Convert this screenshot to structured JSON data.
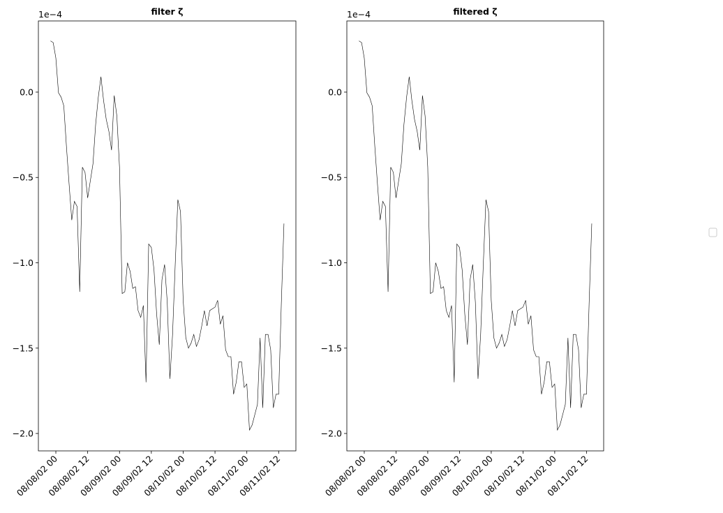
{
  "chart_data": [
    {
      "type": "line",
      "title": "filter ζ",
      "offset_text": "1e−4",
      "color": "#000000",
      "x": [
        "08/07/02 22",
        "08/07/02 23",
        "08/08/02 00",
        "08/08/02 01",
        "08/08/02 02",
        "08/08/02 03",
        "08/08/02 04",
        "08/08/02 05",
        "08/08/02 06",
        "08/08/02 07",
        "08/08/02 08",
        "08/08/02 09",
        "08/08/02 10",
        "08/08/02 11",
        "08/08/02 12",
        "08/08/02 13",
        "08/08/02 14",
        "08/08/02 15",
        "08/08/02 16",
        "08/08/02 17",
        "08/08/02 18",
        "08/08/02 19",
        "08/08/02 20",
        "08/08/02 21",
        "08/08/02 22",
        "08/08/02 23",
        "08/09/02 00",
        "08/09/02 01",
        "08/09/02 02",
        "08/09/02 03",
        "08/09/02 04",
        "08/09/02 05",
        "08/09/02 06",
        "08/09/02 07",
        "08/09/02 08",
        "08/09/02 09",
        "08/09/02 10",
        "08/09/02 11",
        "08/09/02 12",
        "08/09/02 13",
        "08/09/02 14",
        "08/09/02 15",
        "08/09/02 16",
        "08/09/02 17",
        "08/09/02 18",
        "08/09/02 19",
        "08/09/02 20",
        "08/09/02 21",
        "08/09/02 22",
        "08/09/02 23",
        "08/10/02 00",
        "08/10/02 01",
        "08/10/02 02",
        "08/10/02 03",
        "08/10/02 04",
        "08/10/02 05",
        "08/10/02 06",
        "08/10/02 07",
        "08/10/02 08",
        "08/10/02 09",
        "08/10/02 10",
        "08/10/02 11",
        "08/10/02 12",
        "08/10/02 13",
        "08/10/02 14",
        "08/10/02 15",
        "08/10/02 16",
        "08/10/02 17",
        "08/10/02 18",
        "08/10/02 19",
        "08/10/02 20",
        "08/10/02 21",
        "08/10/02 22",
        "08/10/02 23",
        "08/11/02 00",
        "08/11/02 01",
        "08/11/02 02",
        "08/11/02 03",
        "08/11/02 04",
        "08/11/02 05",
        "08/11/02 06",
        "08/11/02 07",
        "08/11/02 08",
        "08/11/02 09",
        "08/11/02 10",
        "08/11/02 11",
        "08/11/02 12",
        "08/11/02 13",
        "08/11/02 14"
      ],
      "values": [
        0.3,
        0.29,
        0.2,
        -0.004,
        -0.03,
        -0.08,
        -0.32,
        -0.54,
        -0.75,
        -0.64,
        -0.67,
        -1.17,
        -0.44,
        -0.47,
        -0.62,
        -0.52,
        -0.42,
        -0.19,
        -0.03,
        0.09,
        -0.05,
        -0.16,
        -0.23,
        -0.34,
        -0.02,
        -0.14,
        -0.44,
        -1.18,
        -1.17,
        -1.0,
        -1.05,
        -1.15,
        -1.14,
        -1.28,
        -1.32,
        -1.25,
        -1.7,
        -0.89,
        -0.91,
        -1.04,
        -1.3,
        -1.48,
        -1.1,
        -1.01,
        -1.23,
        -1.68,
        -1.42,
        -1.01,
        -0.63,
        -0.7,
        -1.22,
        -1.44,
        -1.5,
        -1.47,
        -1.42,
        -1.49,
        -1.45,
        -1.37,
        -1.28,
        -1.37,
        -1.28,
        -1.27,
        -1.26,
        -1.22,
        -1.36,
        -1.31,
        -1.51,
        -1.55,
        -1.55,
        -1.77,
        -1.7,
        -1.58,
        -1.58,
        -1.73,
        -1.71,
        -1.98,
        -1.95,
        -1.89,
        -1.83,
        -1.44,
        -1.85,
        -1.42,
        -1.42,
        -1.51,
        -1.85,
        -1.77,
        -1.77,
        -1.24,
        -0.77
      ],
      "xlim": [
        "08/07/02 17:25",
        "08/11/02 18:30"
      ],
      "xticks": [
        "08/08/02 00",
        "08/08/02 12",
        "08/09/02 00",
        "08/09/02 12",
        "08/10/02 00",
        "08/10/02 12",
        "08/11/02 00",
        "08/11/02 12"
      ],
      "ylim": [
        -2.102,
        0.417
      ],
      "yticks": [
        {
          "value": 0,
          "label": "0.0"
        },
        {
          "value": -0.5,
          "label": "−0.5"
        },
        {
          "value": -1,
          "label": "−1.0"
        },
        {
          "value": -1.5,
          "label": "−1.5"
        },
        {
          "value": -2,
          "label": "−2.0"
        }
      ]
    },
    {
      "type": "line",
      "title": "filtered ζ",
      "offset_text": "1e−4",
      "color": "#000000",
      "x": [
        "08/07/02 22",
        "08/07/02 23",
        "08/08/02 00",
        "08/08/02 01",
        "08/08/02 02",
        "08/08/02 03",
        "08/08/02 04",
        "08/08/02 05",
        "08/08/02 06",
        "08/08/02 07",
        "08/08/02 08",
        "08/08/02 09",
        "08/08/02 10",
        "08/08/02 11",
        "08/08/02 12",
        "08/08/02 13",
        "08/08/02 14",
        "08/08/02 15",
        "08/08/02 16",
        "08/08/02 17",
        "08/08/02 18",
        "08/08/02 19",
        "08/08/02 20",
        "08/08/02 21",
        "08/08/02 22",
        "08/08/02 23",
        "08/09/02 00",
        "08/09/02 01",
        "08/09/02 02",
        "08/09/02 03",
        "08/09/02 04",
        "08/09/02 05",
        "08/09/02 06",
        "08/09/02 07",
        "08/09/02 08",
        "08/09/02 09",
        "08/09/02 10",
        "08/09/02 11",
        "08/09/02 12",
        "08/09/02 13",
        "08/09/02 14",
        "08/09/02 15",
        "08/09/02 16",
        "08/09/02 17",
        "08/09/02 18",
        "08/09/02 19",
        "08/09/02 20",
        "08/09/02 21",
        "08/09/02 22",
        "08/09/02 23",
        "08/10/02 00",
        "08/10/02 01",
        "08/10/02 02",
        "08/10/02 03",
        "08/10/02 04",
        "08/10/02 05",
        "08/10/02 06",
        "08/10/02 07",
        "08/10/02 08",
        "08/10/02 09",
        "08/10/02 10",
        "08/10/02 11",
        "08/10/02 12",
        "08/10/02 13",
        "08/10/02 14",
        "08/10/02 15",
        "08/10/02 16",
        "08/10/02 17",
        "08/10/02 18",
        "08/10/02 19",
        "08/10/02 20",
        "08/10/02 21",
        "08/10/02 22",
        "08/10/02 23",
        "08/11/02 00",
        "08/11/02 01",
        "08/11/02 02",
        "08/11/02 03",
        "08/11/02 04",
        "08/11/02 05",
        "08/11/02 06",
        "08/11/02 07",
        "08/11/02 08",
        "08/11/02 09",
        "08/11/02 10",
        "08/11/02 11",
        "08/11/02 12",
        "08/11/02 13",
        "08/11/02 14"
      ],
      "values": [
        0.3,
        0.29,
        0.2,
        -0.004,
        -0.03,
        -0.08,
        -0.32,
        -0.54,
        -0.75,
        -0.64,
        -0.67,
        -1.17,
        -0.44,
        -0.47,
        -0.62,
        -0.52,
        -0.42,
        -0.19,
        -0.03,
        0.09,
        -0.05,
        -0.16,
        -0.23,
        -0.34,
        -0.02,
        -0.14,
        -0.44,
        -1.18,
        -1.17,
        -1.0,
        -1.05,
        -1.15,
        -1.14,
        -1.28,
        -1.32,
        -1.25,
        -1.7,
        -0.89,
        -0.91,
        -1.04,
        -1.3,
        -1.48,
        -1.1,
        -1.01,
        -1.23,
        -1.68,
        -1.42,
        -1.01,
        -0.63,
        -0.7,
        -1.22,
        -1.44,
        -1.5,
        -1.47,
        -1.42,
        -1.49,
        -1.45,
        -1.37,
        -1.28,
        -1.37,
        -1.28,
        -1.27,
        -1.26,
        -1.22,
        -1.36,
        -1.31,
        -1.51,
        -1.55,
        -1.55,
        -1.77,
        -1.7,
        -1.58,
        -1.58,
        -1.73,
        -1.71,
        -1.98,
        -1.95,
        -1.89,
        -1.83,
        -1.44,
        -1.85,
        -1.42,
        -1.42,
        -1.51,
        -1.85,
        -1.77,
        -1.77,
        -1.24,
        -0.77
      ],
      "xlim": [
        "08/07/02 17:25",
        "08/11/02 18:30"
      ],
      "xticks": [
        "08/08/02 00",
        "08/08/02 12",
        "08/09/02 00",
        "08/09/02 12",
        "08/10/02 00",
        "08/10/02 12",
        "08/11/02 00",
        "08/11/02 12"
      ],
      "ylim": [
        -2.102,
        0.417
      ],
      "yticks": [
        {
          "value": 0,
          "label": "0.0"
        },
        {
          "value": -0.5,
          "label": "−0.5"
        },
        {
          "value": -1,
          "label": "−1.0"
        },
        {
          "value": -1.5,
          "label": "−1.5"
        },
        {
          "value": -2,
          "label": "−2.0"
        }
      ]
    }
  ]
}
